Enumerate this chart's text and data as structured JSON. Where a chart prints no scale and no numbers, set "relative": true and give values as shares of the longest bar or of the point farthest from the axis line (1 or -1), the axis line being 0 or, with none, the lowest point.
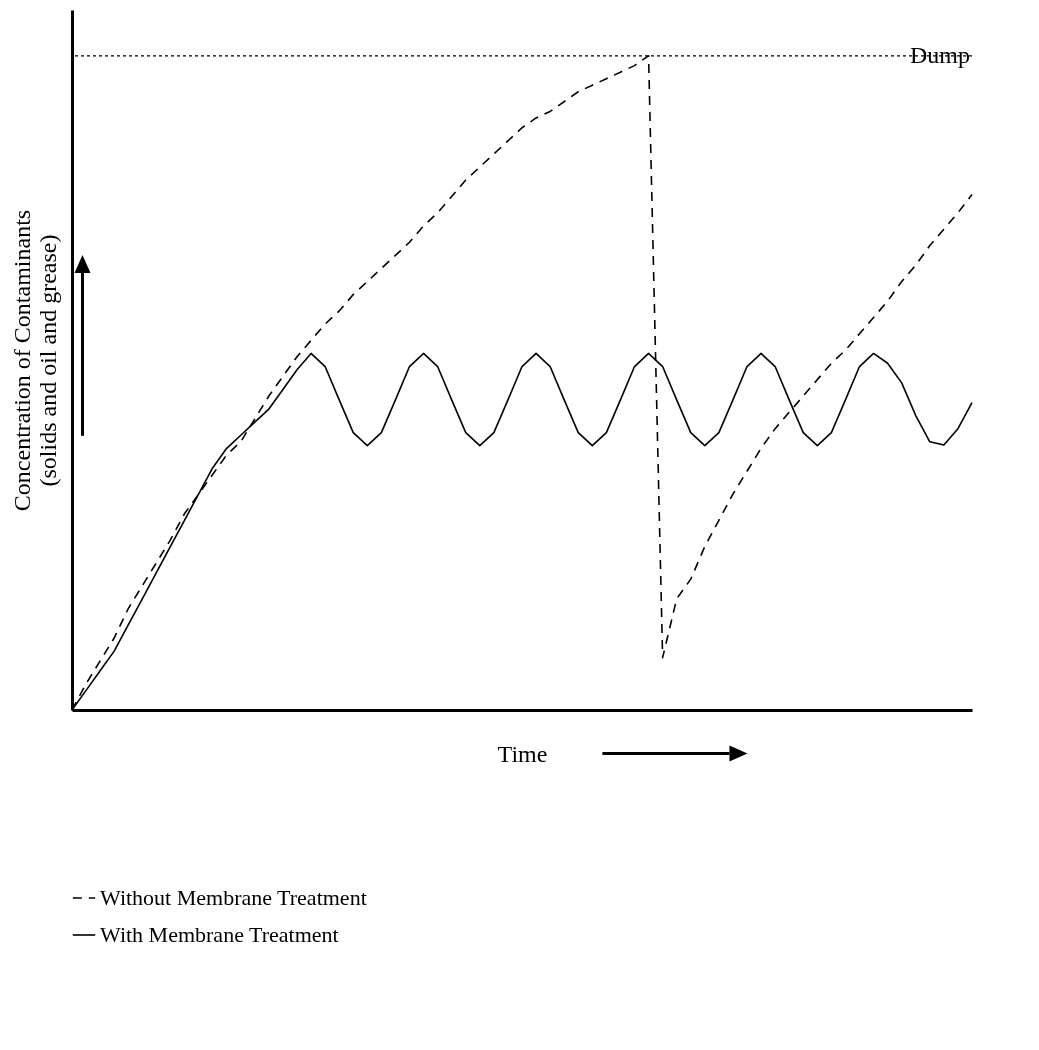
{
  "chart_data": {
    "type": "line",
    "relative": true,
    "xlabel": "Time",
    "ylabel": "Concentration of Contaminants\n(solids and oil and grease)",
    "legend": "bottom",
    "marker": "none",
    "categories": [
      null,
      null,
      null,
      null,
      null,
      null,
      null,
      null,
      null,
      null,
      null,
      null,
      null,
      null,
      null,
      null,
      null,
      null,
      null,
      null,
      null,
      null,
      null,
      null,
      null,
      null,
      null,
      null,
      null,
      null,
      null,
      null,
      null,
      null,
      null,
      null,
      null,
      null,
      null,
      null,
      null,
      null,
      null,
      null,
      null,
      null,
      null,
      null,
      null,
      null,
      null,
      null,
      null,
      null,
      null,
      null,
      null,
      null,
      null,
      null,
      null,
      null,
      null,
      null,
      null
    ],
    "series": [
      {
        "name": "Without Membrane Treatment",
        "color": "#000000",
        "line_style": "dashed",
        "values": [
          0,
          0.04,
          0.075,
          0.11,
          0.155,
          0.19,
          0.225,
          0.26,
          0.3,
          0.33,
          0.36,
          0.39,
          0.41,
          0.445,
          0.48,
          0.51,
          0.54,
          0.565,
          0.59,
          0.61,
          0.635,
          0.655,
          0.675,
          0.695,
          0.715,
          0.74,
          0.76,
          0.785,
          0.81,
          0.83,
          0.85,
          0.87,
          0.89,
          0.905,
          0.915,
          0.93,
          0.945,
          0.955,
          0.965,
          0.975,
          0.985,
          1,
          0.08,
          0.17,
          0.2,
          0.25,
          0.29,
          0.33,
          0.365,
          0.4,
          0.43,
          0.455,
          0.48,
          0.505,
          0.53,
          0.55,
          0.575,
          0.6,
          0.625,
          0.655,
          0.68,
          0.71,
          0.735,
          0.76,
          0.788
        ]
      },
      {
        "name": "With Membrane Treatment",
        "color": "#000000",
        "line_style": "solid",
        "values": [
          0,
          0.03,
          0.06,
          0.09,
          0.13,
          0.17,
          0.21,
          0.25,
          0.29,
          0.33,
          0.37,
          0.4,
          0.42,
          0.44,
          0.46,
          0.49,
          0.52,
          0.545,
          0.525,
          0.474,
          0.424,
          0.404,
          0.424,
          0.474,
          0.525,
          0.545,
          0.525,
          0.474,
          0.424,
          0.404,
          0.424,
          0.474,
          0.525,
          0.545,
          0.525,
          0.474,
          0.424,
          0.404,
          0.424,
          0.474,
          0.525,
          0.545,
          0.525,
          0.474,
          0.424,
          0.404,
          0.424,
          0.474,
          0.525,
          0.545,
          0.525,
          0.474,
          0.424,
          0.404,
          0.424,
          0.474,
          0.525,
          0.545,
          0.53,
          0.5,
          0.45,
          0.41,
          0.405,
          0.43,
          0.47
        ]
      }
    ],
    "ref_lines": [
      {
        "axis": "y",
        "value": 1,
        "label": "Dump",
        "line_style": "dotted",
        "color": "#000000"
      }
    ]
  }
}
